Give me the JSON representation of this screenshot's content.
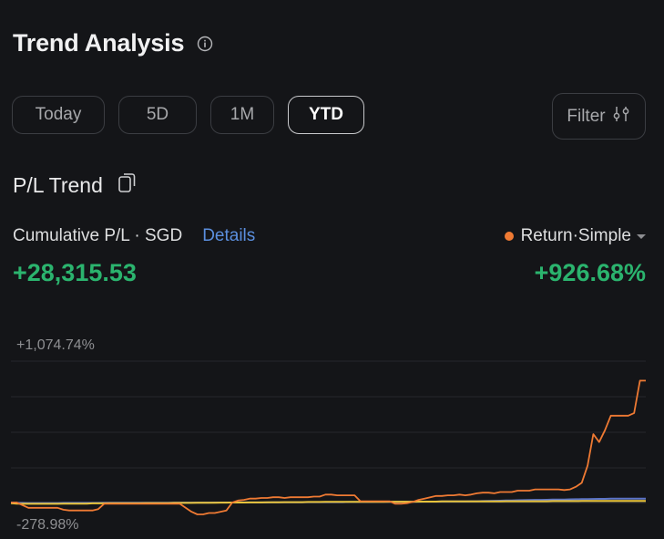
{
  "header": {
    "title": "Trend Analysis",
    "info_icon": "info-icon"
  },
  "tabs": [
    {
      "label": "Today",
      "active": false
    },
    {
      "label": "5D",
      "active": false
    },
    {
      "label": "1M",
      "active": false
    },
    {
      "label": "YTD",
      "active": true
    }
  ],
  "filter": {
    "label": "Filter",
    "icon": "sliders-icon"
  },
  "section": {
    "title": "P/L Trend",
    "share_icon": "share-icon"
  },
  "metrics": {
    "cumulative_label": "Cumulative P/L · SGD",
    "details_link": "Details",
    "cumulative_value": "+28,315.53",
    "return_selector": "Return·Simple",
    "return_value": "+926.68%"
  },
  "colors": {
    "background": "#141518",
    "positive": "#2bb46e",
    "link": "#5b8fde",
    "return_line": "#ef7a33",
    "yellow_line": "#e8c33a",
    "blue_line": "#5b74c9"
  },
  "chart_data": {
    "type": "line",
    "y_axis_top_label": "+1,074.74%",
    "y_axis_bottom_label": "-278.98%",
    "ylim": [
      -278.98,
      1074.74
    ],
    "grid": true,
    "series": [
      {
        "color": "#ef7a33",
        "values": [
          0,
          0,
          -20,
          -40,
          -40,
          -40,
          -40,
          -40,
          -40,
          -55,
          -60,
          -60,
          -60,
          -60,
          -60,
          -50,
          -10,
          -10,
          -10,
          -10,
          -10,
          -10,
          -10,
          -10,
          -10,
          -10,
          -10,
          -10,
          -10,
          -10,
          -40,
          -70,
          -90,
          -90,
          -80,
          -80,
          -70,
          -60,
          0,
          15,
          20,
          30,
          30,
          35,
          35,
          40,
          40,
          35,
          40,
          40,
          40,
          40,
          45,
          45,
          60,
          60,
          55,
          55,
          55,
          55,
          10,
          10,
          10,
          10,
          10,
          10,
          -10,
          -10,
          -5,
          5,
          20,
          30,
          40,
          50,
          50,
          55,
          55,
          60,
          55,
          60,
          70,
          75,
          75,
          70,
          80,
          80,
          80,
          90,
          90,
          90,
          100,
          100,
          100,
          100,
          100,
          95,
          100,
          120,
          150,
          280,
          520,
          460,
          550,
          660,
          660,
          660,
          660,
          680,
          926.68,
          926.68
        ]
      },
      {
        "color": "#e8c33a",
        "values": [
          -5,
          -8,
          -10,
          -10,
          -10,
          -10,
          -10,
          -10,
          -10,
          -8,
          -8,
          -8,
          -8,
          -8,
          -6,
          -6,
          -6,
          -5,
          -5,
          -5,
          -5,
          -5,
          -5,
          -4,
          -4,
          -4,
          -4,
          -4,
          -3,
          -3,
          -3,
          -3,
          -2,
          -2,
          -2,
          -2,
          -1,
          -1,
          0,
          0,
          0,
          1,
          1,
          1,
          2,
          2,
          2,
          3,
          3,
          3,
          3,
          4,
          4,
          4,
          5,
          5,
          5,
          5,
          5,
          5,
          5,
          5,
          5,
          5,
          5,
          6,
          6,
          6,
          6,
          6,
          7,
          7,
          7,
          7,
          8,
          8,
          8,
          8,
          8,
          8,
          9,
          9,
          9,
          9,
          9,
          10,
          10,
          10,
          10,
          10,
          10,
          10,
          10,
          11,
          11,
          11,
          11,
          11,
          12,
          12,
          12,
          12,
          12,
          12,
          12,
          12,
          12,
          12,
          12,
          12
        ]
      },
      {
        "color": "#5b74c9",
        "values": [
          0,
          -2,
          -3,
          -4,
          -4,
          -4,
          -4,
          -4,
          -4,
          -3,
          -3,
          -3,
          -3,
          -3,
          -3,
          -3,
          -2,
          -2,
          -2,
          -2,
          -2,
          -2,
          -2,
          -2,
          -2,
          -2,
          -2,
          -2,
          -1,
          -1,
          -1,
          -1,
          -1,
          -1,
          -1,
          0,
          0,
          0,
          0,
          1,
          1,
          1,
          1,
          1,
          1,
          2,
          2,
          2,
          2,
          2,
          2,
          3,
          3,
          3,
          3,
          3,
          3,
          3,
          4,
          4,
          4,
          4,
          4,
          5,
          5,
          5,
          5,
          6,
          6,
          6,
          6,
          7,
          7,
          7,
          8,
          8,
          8,
          9,
          9,
          10,
          10,
          11,
          12,
          13,
          14,
          15,
          16,
          17,
          18,
          19,
          20,
          20,
          21,
          22,
          23,
          23,
          24,
          25,
          26,
          26,
          27,
          28,
          28,
          29,
          30,
          30,
          30,
          30,
          30,
          30
        ]
      }
    ]
  }
}
